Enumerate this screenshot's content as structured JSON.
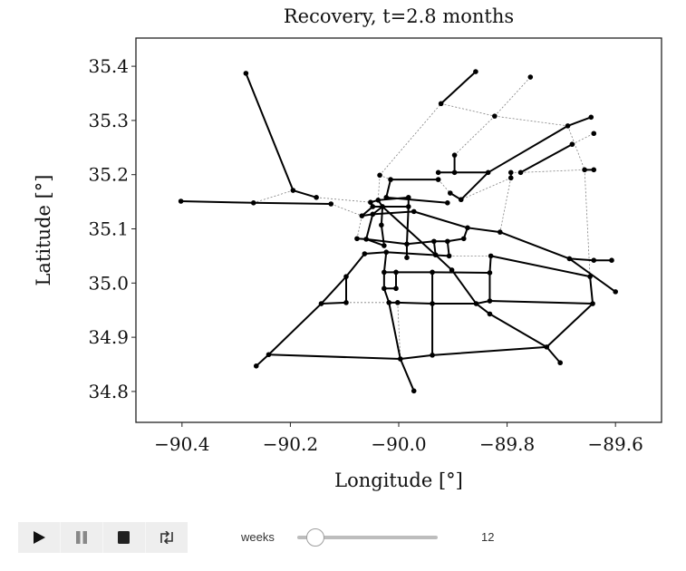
{
  "chart_data": {
    "type": "network",
    "title": "Recovery, t=2.8 months",
    "xlabel": "Longitude [°]",
    "ylabel": "Latitude [°]",
    "xlim": [
      -90.485,
      -89.515
    ],
    "ylim": [
      34.743,
      35.452
    ],
    "xticks": [
      "-90.4",
      "-90.2",
      "-90.0",
      "-89.8",
      "-89.6"
    ],
    "xtick_values": [
      -90.4,
      -90.2,
      -90.0,
      -89.8,
      -89.6
    ],
    "yticks": [
      "35.4",
      "35.3",
      "35.2",
      "35.1",
      "35.0",
      "34.9",
      "34.8"
    ],
    "ytick_values": [
      35.4,
      35.3,
      35.2,
      35.1,
      35.0,
      34.9,
      34.8
    ],
    "colors": {
      "restored_edge": "#000000",
      "damaged_edge": "#808080",
      "node": "#000000"
    },
    "nodes": {
      "1": [
        -90.282,
        35.387
      ],
      "2": [
        -90.195,
        35.171
      ],
      "3": [
        -90.152,
        35.158
      ],
      "4": [
        -90.402,
        35.151
      ],
      "5": [
        -90.268,
        35.148
      ],
      "6": [
        -90.125,
        35.146
      ],
      "7": [
        -89.858,
        35.39
      ],
      "8": [
        -89.922,
        35.331
      ],
      "9": [
        -89.757,
        35.38
      ],
      "10": [
        -89.823,
        35.308
      ],
      "11": [
        -89.688,
        35.29
      ],
      "12": [
        -89.645,
        35.306
      ],
      "13": [
        -89.68,
        35.256
      ],
      "14": [
        -89.64,
        35.276
      ],
      "15": [
        -89.897,
        35.236
      ],
      "16": [
        -89.927,
        35.204
      ],
      "17": [
        -89.897,
        35.204
      ],
      "18": [
        -89.835,
        35.204
      ],
      "19": [
        -89.793,
        35.204
      ],
      "20": [
        -89.793,
        35.194
      ],
      "21": [
        -89.775,
        35.204
      ],
      "22": [
        -89.657,
        35.209
      ],
      "23": [
        -89.64,
        35.209
      ],
      "24": [
        -90.035,
        35.199
      ],
      "25": [
        -90.015,
        35.191
      ],
      "26": [
        -89.927,
        35.191
      ],
      "27": [
        -89.905,
        35.166
      ],
      "28": [
        -89.885,
        35.154
      ],
      "29": [
        -89.91,
        35.148
      ],
      "30": [
        -90.023,
        35.158
      ],
      "31": [
        -89.982,
        35.158
      ],
      "32": [
        -90.052,
        35.149
      ],
      "33": [
        -90.038,
        35.153
      ],
      "34": [
        -90.03,
        35.141
      ],
      "35": [
        -90.048,
        35.141
      ],
      "36": [
        -90.068,
        35.124
      ],
      "37": [
        -90.048,
        35.127
      ],
      "38": [
        -89.982,
        35.141
      ],
      "39": [
        -89.972,
        35.132
      ],
      "40": [
        -89.873,
        35.102
      ],
      "41": [
        -89.813,
        35.094
      ],
      "42": [
        -90.032,
        35.107
      ],
      "43": [
        -90.077,
        35.082
      ],
      "44": [
        -90.06,
        35.081
      ],
      "45": [
        -90.027,
        35.069
      ],
      "46": [
        -90.063,
        35.054
      ],
      "47": [
        -90.023,
        35.057
      ],
      "48": [
        -89.985,
        35.072
      ],
      "49": [
        -89.985,
        35.047
      ],
      "50": [
        -89.935,
        35.077
      ],
      "51": [
        -89.91,
        35.077
      ],
      "52": [
        -89.88,
        35.082
      ],
      "53": [
        -89.932,
        35.052
      ],
      "54": [
        -89.907,
        35.05
      ],
      "55": [
        -89.83,
        35.05
      ],
      "56": [
        -89.685,
        35.045
      ],
      "57": [
        -89.64,
        35.042
      ],
      "58": [
        -89.607,
        35.042
      ],
      "59": [
        -89.647,
        35.012
      ],
      "60": [
        -89.6,
        34.984
      ],
      "61": [
        -89.642,
        34.962
      ],
      "62": [
        -89.832,
        34.967
      ],
      "63": [
        -89.832,
        34.943
      ],
      "64": [
        -89.857,
        34.962
      ],
      "65": [
        -89.727,
        34.882
      ],
      "66": [
        -89.702,
        34.853
      ],
      "67": [
        -89.938,
        34.867
      ],
      "68": [
        -89.997,
        34.86
      ],
      "69": [
        -89.972,
        34.801
      ],
      "70": [
        -89.938,
        35.02
      ],
      "71": [
        -90.027,
        35.02
      ],
      "72": [
        -90.005,
        35.02
      ],
      "73": [
        -89.832,
        35.019
      ],
      "74": [
        -90.027,
        34.99
      ],
      "75": [
        -90.005,
        34.99
      ],
      "76": [
        -90.018,
        34.964
      ],
      "77": [
        -90.002,
        34.964
      ],
      "78": [
        -89.938,
        34.962
      ],
      "79": [
        -90.097,
        35.012
      ],
      "80": [
        -90.097,
        34.964
      ],
      "81": [
        -90.143,
        34.962
      ],
      "82": [
        -90.24,
        34.868
      ],
      "83": [
        -90.263,
        34.847
      ],
      "84": [
        -89.902,
        35.024
      ]
    },
    "restored_edges": [
      [
        1,
        2
      ],
      [
        2,
        3
      ],
      [
        4,
        5
      ],
      [
        5,
        6
      ],
      [
        7,
        8
      ],
      [
        15,
        17
      ],
      [
        16,
        17
      ],
      [
        17,
        18
      ],
      [
        26,
        25
      ],
      [
        25,
        30
      ],
      [
        30,
        29
      ],
      [
        27,
        28
      ],
      [
        28,
        18
      ],
      [
        18,
        11
      ],
      [
        11,
        12
      ],
      [
        21,
        13
      ],
      [
        19,
        20
      ],
      [
        22,
        23
      ],
      [
        39,
        40
      ],
      [
        40,
        41
      ],
      [
        41,
        56
      ],
      [
        56,
        60
      ],
      [
        56,
        57
      ],
      [
        57,
        58
      ],
      [
        55,
        59
      ],
      [
        59,
        61
      ],
      [
        61,
        65
      ],
      [
        65,
        66
      ],
      [
        67,
        65
      ],
      [
        68,
        67
      ],
      [
        68,
        69
      ],
      [
        70,
        78
      ],
      [
        78,
        67
      ],
      [
        71,
        72
      ],
      [
        72,
        70
      ],
      [
        70,
        73
      ],
      [
        55,
        73
      ],
      [
        73,
        62
      ],
      [
        62,
        61
      ],
      [
        76,
        77
      ],
      [
        77,
        78
      ],
      [
        78,
        64
      ],
      [
        64,
        62
      ],
      [
        34,
        53
      ],
      [
        53,
        84
      ],
      [
        84,
        64
      ],
      [
        64,
        63
      ],
      [
        63,
        65
      ],
      [
        83,
        82
      ],
      [
        82,
        81
      ],
      [
        81,
        79
      ],
      [
        79,
        46
      ],
      [
        79,
        80
      ],
      [
        81,
        80
      ],
      [
        82,
        68
      ],
      [
        46,
        47
      ],
      [
        43,
        44
      ],
      [
        44,
        45
      ],
      [
        37,
        44
      ],
      [
        42,
        45
      ],
      [
        47,
        71
      ],
      [
        71,
        74
      ],
      [
        74,
        76
      ],
      [
        76,
        68
      ],
      [
        72,
        75
      ],
      [
        74,
        75
      ],
      [
        32,
        33
      ],
      [
        33,
        34
      ],
      [
        32,
        35
      ],
      [
        35,
        36
      ],
      [
        36,
        37
      ],
      [
        37,
        34
      ],
      [
        34,
        38
      ],
      [
        35,
        38
      ],
      [
        33,
        31
      ],
      [
        31,
        38
      ],
      [
        38,
        48
      ],
      [
        48,
        49
      ],
      [
        37,
        39
      ],
      [
        44,
        48
      ],
      [
        48,
        50
      ],
      [
        50,
        51
      ],
      [
        51,
        52
      ],
      [
        52,
        40
      ],
      [
        50,
        53
      ],
      [
        51,
        54
      ],
      [
        47,
        54
      ],
      [
        34,
        42
      ]
    ],
    "damaged_edges": [
      [
        2,
        5
      ],
      [
        3,
        32
      ],
      [
        6,
        36
      ],
      [
        24,
        8
      ],
      [
        8,
        10
      ],
      [
        10,
        11
      ],
      [
        10,
        9
      ],
      [
        10,
        15
      ],
      [
        11,
        22
      ],
      [
        22,
        59
      ],
      [
        13,
        14
      ],
      [
        21,
        22
      ],
      [
        20,
        28
      ],
      [
        20,
        41
      ],
      [
        24,
        33
      ],
      [
        24,
        25
      ],
      [
        26,
        27
      ],
      [
        36,
        43
      ],
      [
        80,
        76
      ],
      [
        77,
        68
      ],
      [
        54,
        55
      ],
      [
        19,
        21
      ]
    ]
  },
  "controls": {
    "play_icon": "play-icon",
    "pause_icon": "pause-icon",
    "stop_icon": "stop-icon",
    "loop_icon": "loop-icon",
    "slider_label": "weeks",
    "slider_value": "12",
    "slider_fraction": 0.12
  }
}
